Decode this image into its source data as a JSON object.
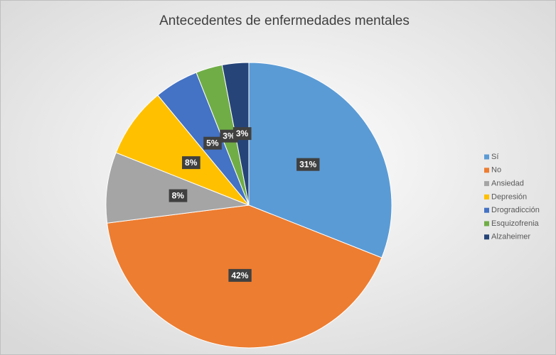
{
  "chart_data": {
    "type": "pie",
    "title": "Antecedentes de  enfermedades mentales",
    "categories": [
      "Sí",
      "No",
      "Ansiedad",
      "Depresión",
      "Drogradicción",
      "Esquizofrenia",
      "Alzaheimer"
    ],
    "values": [
      31,
      42,
      8,
      8,
      5,
      3,
      3
    ],
    "value_labels": [
      "31%",
      "42%",
      "8%",
      "8%",
      "5%",
      "3%",
      "3%"
    ],
    "colors": [
      "#5b9bd5",
      "#ed7d31",
      "#a5a5a5",
      "#ffc000",
      "#4472c4",
      "#70ad47",
      "#264478"
    ],
    "legend": "right"
  }
}
